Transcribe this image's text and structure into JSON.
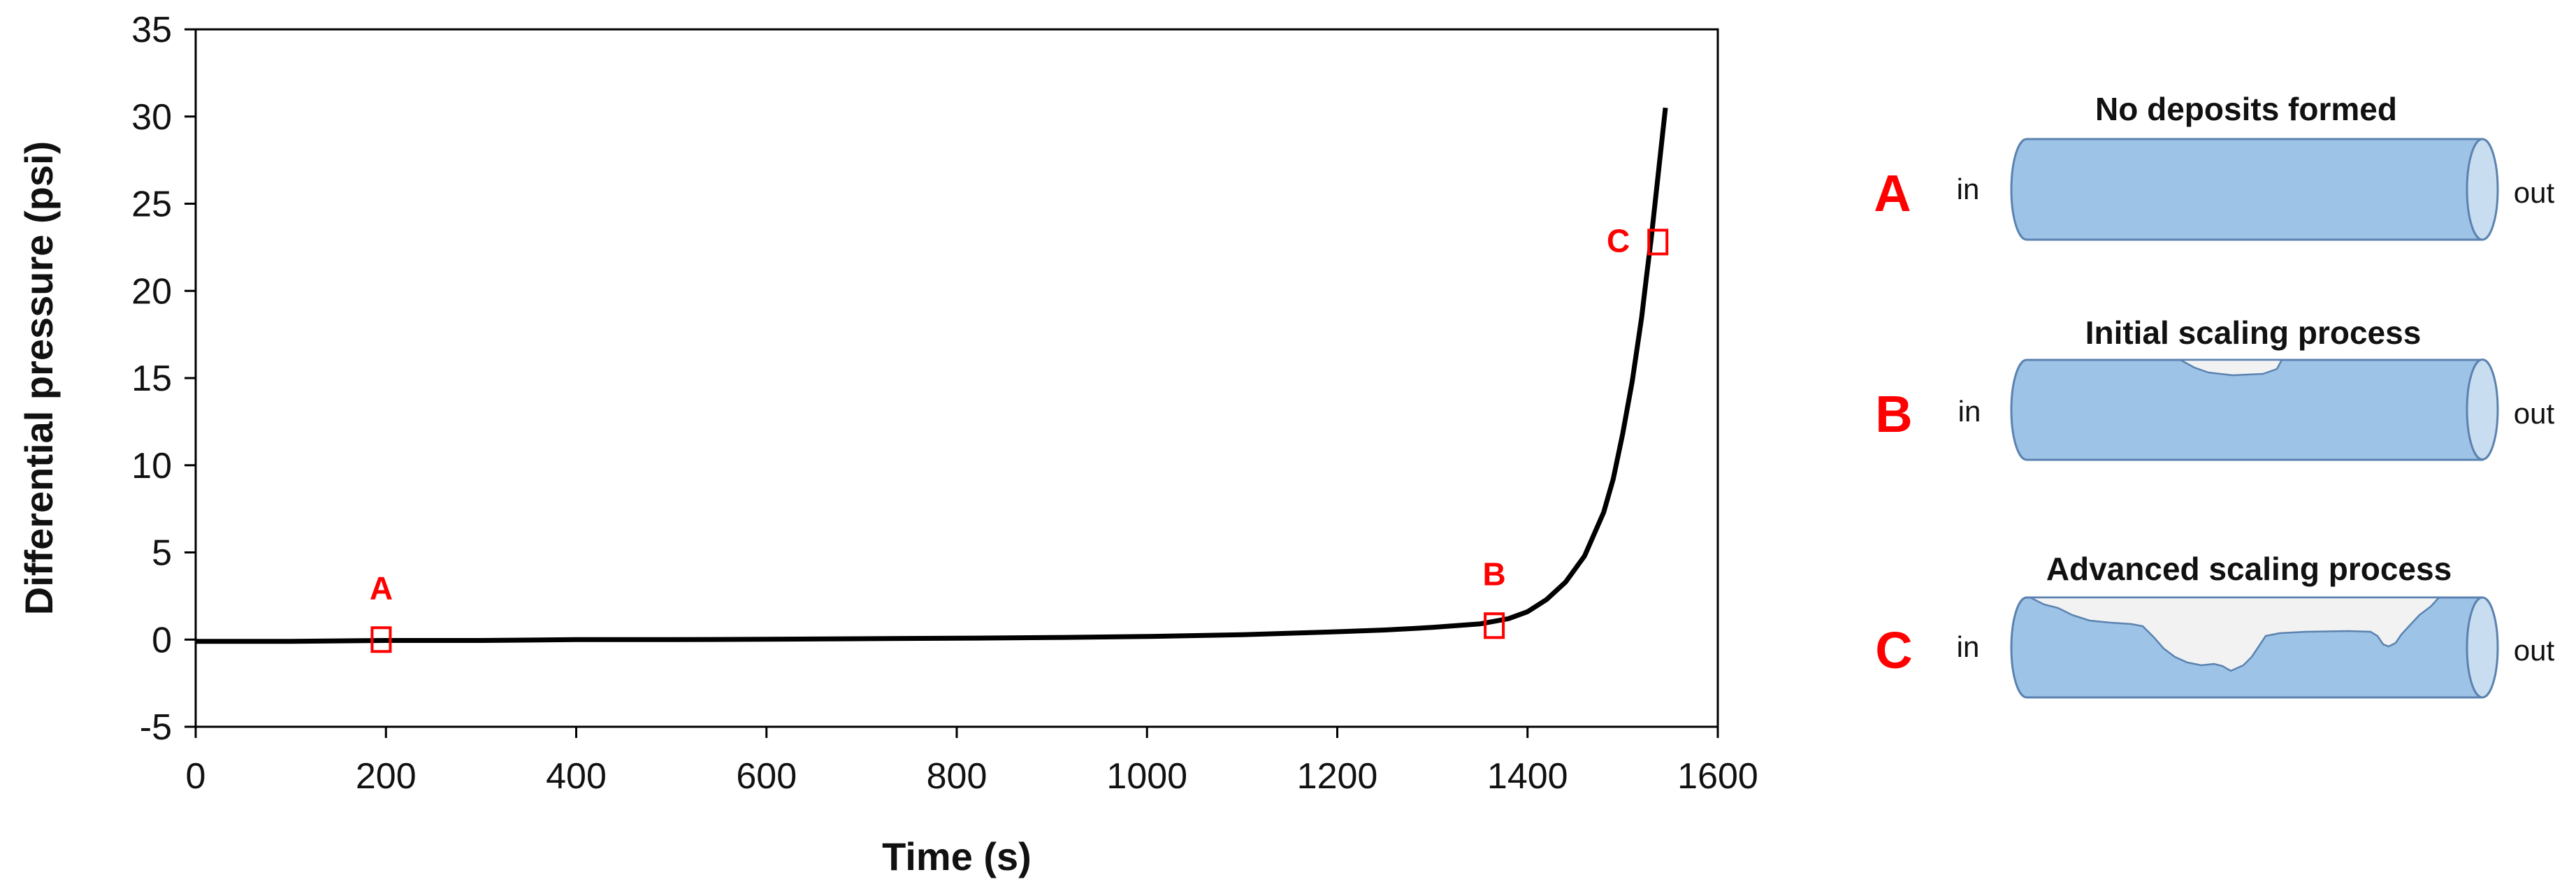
{
  "chart_data": {
    "type": "line",
    "title": "",
    "xlabel": "Time (s)",
    "ylabel": "Differential pressure (psi)",
    "xlim": [
      0,
      1600
    ],
    "ylim": [
      -5,
      35
    ],
    "xticks": [
      0,
      200,
      400,
      600,
      800,
      1000,
      1200,
      1400,
      1600
    ],
    "yticks": [
      -5,
      0,
      5,
      10,
      15,
      20,
      25,
      30,
      35
    ],
    "grid": false,
    "series": [
      {
        "name": "Differential pressure",
        "color": "#000000",
        "x": [
          0,
          100,
          200,
          300,
          400,
          500,
          600,
          700,
          800,
          900,
          1000,
          1100,
          1200,
          1250,
          1300,
          1350,
          1380,
          1400,
          1420,
          1440,
          1460,
          1480,
          1490,
          1500,
          1510,
          1520,
          1525,
          1530,
          1535,
          1540,
          1545
        ],
        "y": [
          -0.1,
          -0.1,
          -0.05,
          -0.05,
          0.0,
          0.0,
          0.02,
          0.05,
          0.08,
          0.12,
          0.18,
          0.28,
          0.45,
          0.55,
          0.7,
          0.9,
          1.2,
          1.6,
          2.3,
          3.3,
          4.8,
          7.3,
          9.2,
          11.8,
          14.8,
          18.5,
          20.8,
          23.0,
          25.5,
          28.0,
          30.5
        ]
      }
    ],
    "markers": [
      {
        "label": "A",
        "x": 195,
        "y": 0.0
      },
      {
        "label": "B",
        "x": 1365,
        "y": 0.8
      },
      {
        "label": "C",
        "x": 1537,
        "y": 22.8
      }
    ],
    "marker_color": "#ff0000"
  },
  "stages": [
    {
      "letter": "A",
      "title": "No deposits formed",
      "inlet": "in",
      "outlet": "out"
    },
    {
      "letter": "B",
      "title": "Initial scaling process",
      "inlet": "in",
      "outlet": "out"
    },
    {
      "letter": "C",
      "title": "Advanced scaling process",
      "inlet": "in",
      "outlet": "out"
    }
  ],
  "pipe_color": "#9dc3e6",
  "deposit_color": "#f2f2f2"
}
